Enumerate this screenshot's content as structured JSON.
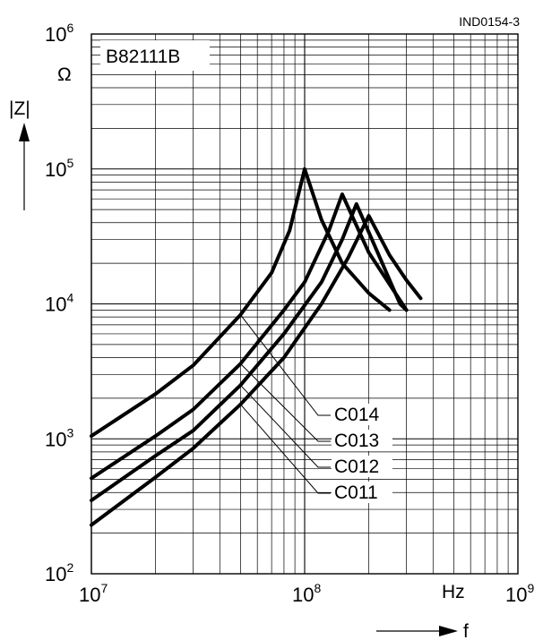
{
  "figure_id": "IND0154-3",
  "part_number": "B82111B",
  "chart_data": {
    "type": "line",
    "x_scale": "log",
    "y_scale": "log",
    "xlim": [
      10000000,
      1000000000
    ],
    "ylim": [
      100,
      1000000
    ],
    "xlabel": "f",
    "x_unit": "Hz",
    "ylabel": "|Z|",
    "y_unit": "Ω",
    "x_ticks": [
      {
        "base": "10",
        "exp": "7"
      },
      {
        "base": "10",
        "exp": "8"
      },
      {
        "base": "10",
        "exp": "9"
      }
    ],
    "y_ticks": [
      {
        "base": "10",
        "exp": "2"
      },
      {
        "base": "10",
        "exp": "3"
      },
      {
        "base": "10",
        "exp": "4"
      },
      {
        "base": "10",
        "exp": "5"
      },
      {
        "base": "10",
        "exp": "6"
      }
    ],
    "grid": true,
    "series": [
      {
        "name": "C014",
        "x": [
          10000000,
          20000000,
          30000000,
          50000000,
          70000000,
          85000000,
          100000000,
          120000000,
          150000000,
          200000000,
          250000000
        ],
        "y": [
          1050,
          2150,
          3500,
          8300,
          17000,
          35000,
          100000,
          42000,
          20000,
          12000,
          9000
        ]
      },
      {
        "name": "C013",
        "x": [
          10000000,
          20000000,
          30000000,
          50000000,
          80000000,
          100000000,
          130000000,
          150000000,
          200000000,
          250000000,
          300000000
        ],
        "y": [
          510,
          1050,
          1650,
          3600,
          9000,
          14500,
          35000,
          65000,
          24000,
          14000,
          9000
        ]
      },
      {
        "name": "C012",
        "x": [
          10000000,
          20000000,
          30000000,
          50000000,
          80000000,
          120000000,
          150000000,
          175000000,
          220000000,
          280000000,
          300000000
        ],
        "y": [
          350,
          750,
          1150,
          2500,
          6000,
          14500,
          30000,
          55000,
          24000,
          10000,
          9000
        ]
      },
      {
        "name": "C011",
        "x": [
          10000000,
          20000000,
          30000000,
          50000000,
          80000000,
          120000000,
          160000000,
          200000000,
          250000000,
          300000000,
          350000000
        ],
        "y": [
          230,
          520,
          850,
          1800,
          4000,
          10000,
          22000,
          45000,
          23000,
          15000,
          11000
        ]
      }
    ]
  }
}
